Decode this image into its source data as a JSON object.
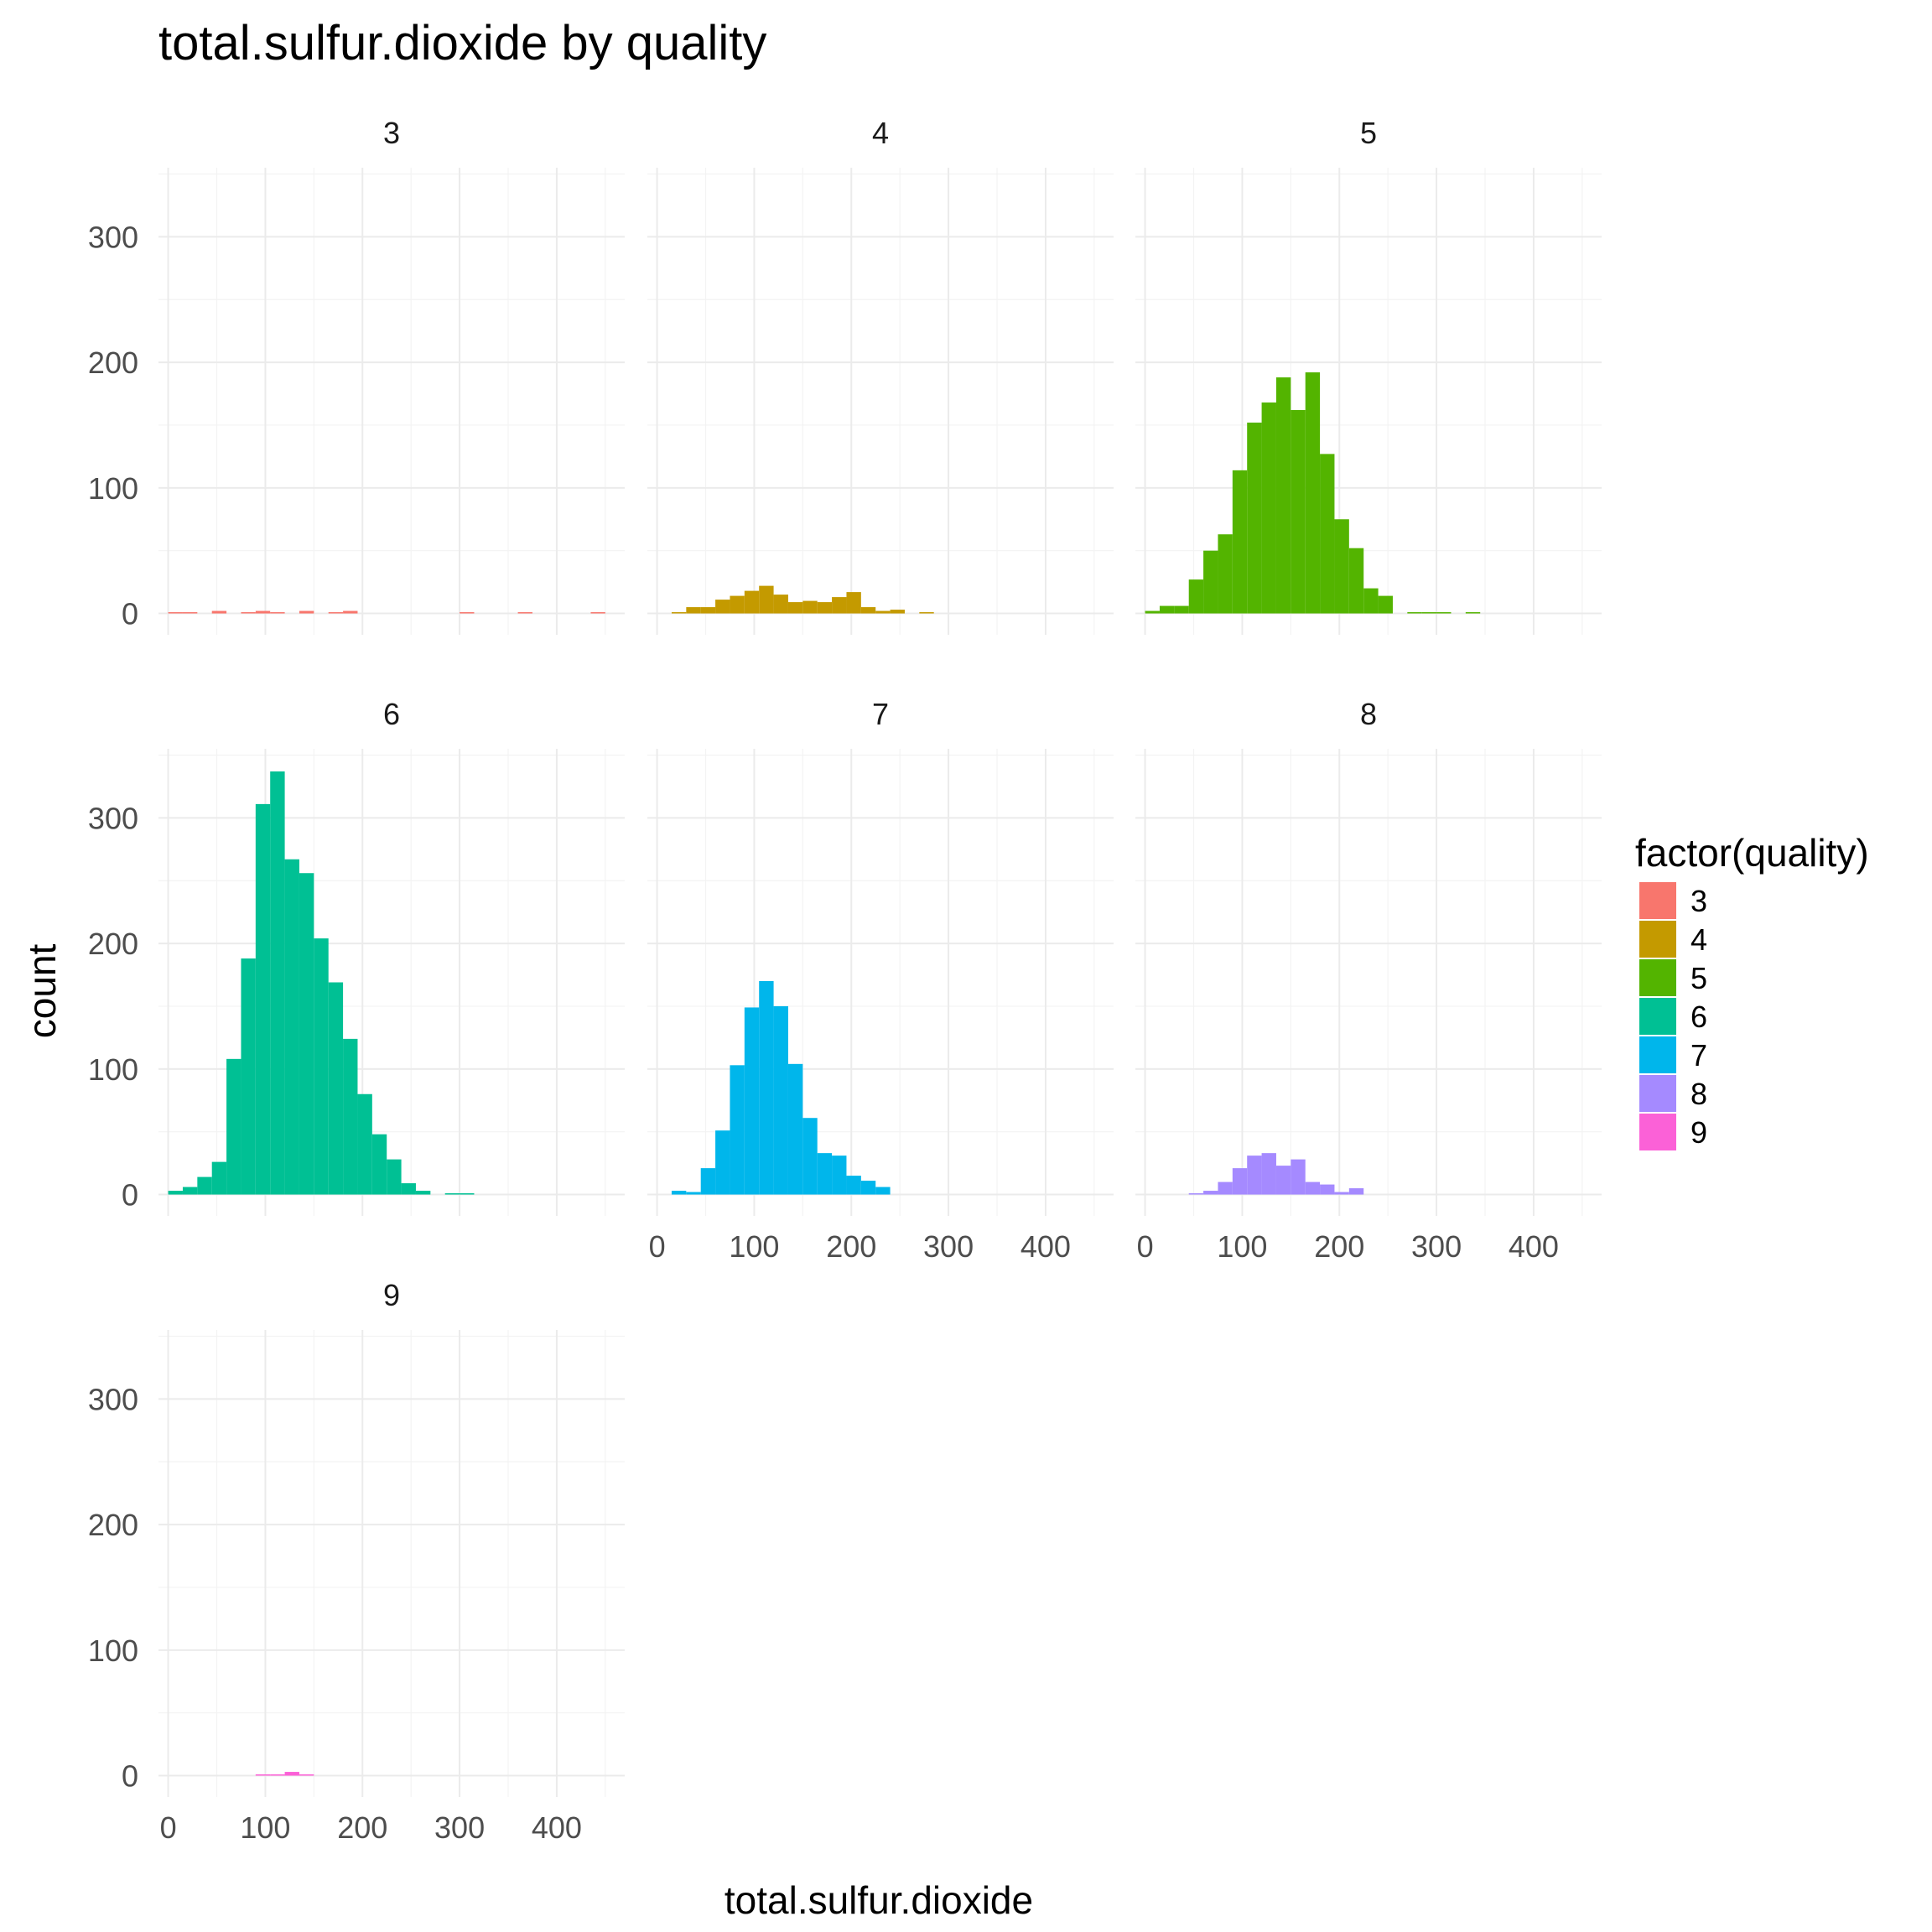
{
  "chart_data": {
    "type": "bar",
    "subtype": "faceted-histogram",
    "title": "total.sulfur.dioxide by quality",
    "xlabel": "total.sulfur.dioxide",
    "ylabel": "count",
    "xlim": [
      -10,
      470
    ],
    "ylim": [
      -17,
      355
    ],
    "x_ticks": [
      0,
      100,
      200,
      300,
      400
    ],
    "y_ticks": [
      0,
      100,
      200,
      300
    ],
    "grid": true,
    "facet_layout": {
      "ncol": 3,
      "nrow": 3
    },
    "bin_edges": [
      0,
      15,
      30,
      45,
      60,
      75,
      90,
      105,
      120,
      135,
      150,
      165,
      180,
      195,
      210,
      225,
      240,
      255,
      270,
      285,
      300,
      315,
      330,
      345,
      360,
      375,
      390,
      405,
      420,
      435,
      450,
      465
    ],
    "legend": {
      "title": "factor(quality)",
      "position": "right",
      "entries": [
        "3",
        "4",
        "5",
        "6",
        "7",
        "8",
        "9"
      ]
    },
    "series": [
      {
        "name": "3",
        "color": "#F8766D",
        "values": [
          1,
          1,
          0,
          2,
          0,
          1,
          2,
          1,
          0,
          2,
          0,
          1,
          2,
          0,
          0,
          0,
          0,
          0,
          0,
          0,
          1,
          0,
          0,
          0,
          1,
          0,
          0,
          0,
          0,
          1,
          0
        ]
      },
      {
        "name": "4",
        "color": "#C49A00",
        "values": [
          0,
          1,
          5,
          5,
          11,
          14,
          18,
          22,
          15,
          9,
          10,
          9,
          13,
          17,
          5,
          2,
          3,
          0,
          1,
          0,
          0,
          0,
          0,
          0,
          0,
          0,
          0,
          0,
          0,
          0,
          0
        ]
      },
      {
        "name": "5",
        "color": "#53B400",
        "values": [
          2,
          6,
          6,
          27,
          50,
          63,
          114,
          152,
          168,
          188,
          162,
          192,
          127,
          75,
          52,
          20,
          14,
          0,
          1,
          1,
          1,
          0,
          1,
          0,
          0,
          0,
          0,
          0,
          0,
          0,
          0
        ]
      },
      {
        "name": "6",
        "color": "#00C094",
        "values": [
          3,
          6,
          14,
          26,
          108,
          188,
          311,
          337,
          267,
          256,
          204,
          169,
          124,
          80,
          48,
          28,
          9,
          3,
          0,
          1,
          1,
          0,
          0,
          0,
          0,
          0,
          0,
          0,
          0,
          0,
          0
        ]
      },
      {
        "name": "7",
        "color": "#00B6EB",
        "values": [
          0,
          3,
          2,
          21,
          51,
          103,
          149,
          170,
          150,
          104,
          61,
          33,
          31,
          15,
          11,
          6,
          0,
          0,
          0,
          0,
          0,
          0,
          0,
          0,
          0,
          0,
          0,
          0,
          0,
          0,
          0
        ]
      },
      {
        "name": "8",
        "color": "#A58AFF",
        "values": [
          0,
          0,
          0,
          1,
          3,
          10,
          21,
          31,
          33,
          23,
          28,
          10,
          8,
          2,
          5,
          0,
          0,
          0,
          0,
          0,
          0,
          0,
          0,
          0,
          0,
          0,
          0,
          0,
          0,
          0,
          0
        ]
      },
      {
        "name": "9",
        "color": "#FB61D7",
        "values": [
          0,
          0,
          0,
          0,
          0,
          0,
          1,
          1,
          3,
          1,
          0,
          0,
          0,
          0,
          0,
          0,
          0,
          0,
          0,
          0,
          0,
          0,
          0,
          0,
          0,
          0,
          0,
          0,
          0,
          0,
          0
        ]
      }
    ]
  }
}
